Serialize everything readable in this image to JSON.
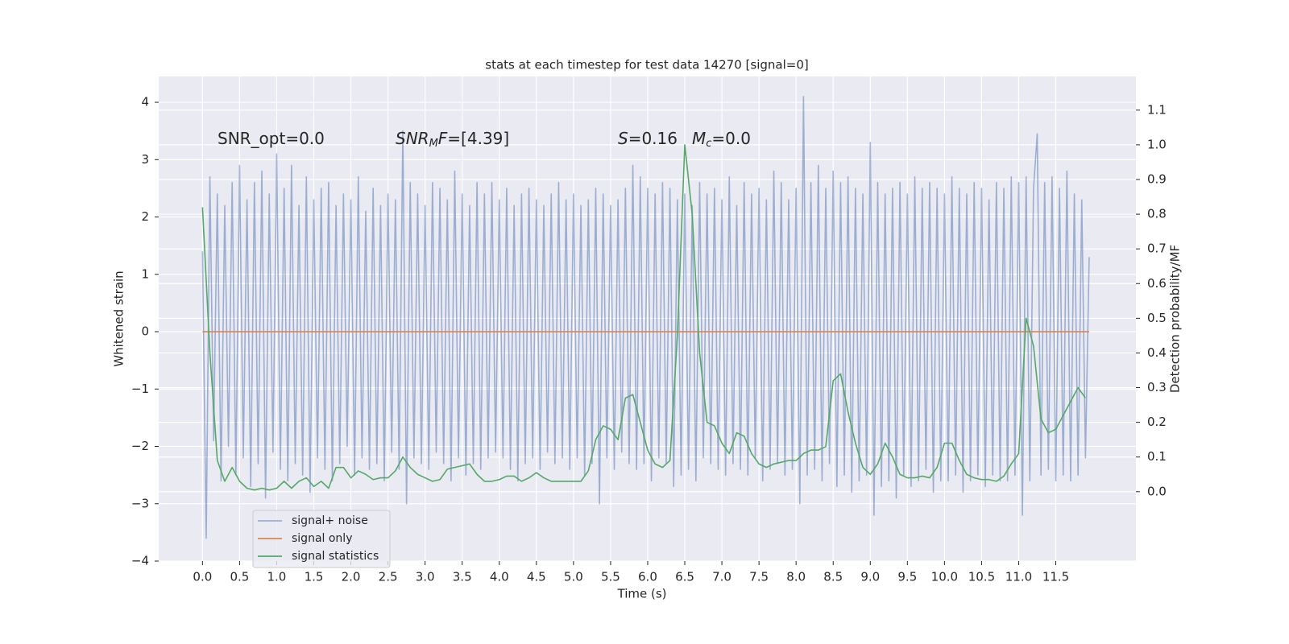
{
  "chart_data": {
    "type": "line",
    "title": "stats at each timestep for test data 14270 [signal=0]",
    "xlabel": "Time (s)",
    "ylabel": "Whitened strain",
    "y2label": "Detection probability/MF",
    "annotations": [
      [
        {
          "text": "SNR_opt=0.0"
        }
      ],
      [
        {
          "text": "SNR",
          "italic": true
        },
        {
          "text": "M",
          "italic": true,
          "sub": true
        },
        {
          "text": "F",
          "italic": true
        },
        {
          "text": "=[4.39]"
        }
      ],
      [
        {
          "text": "S",
          "italic": true
        },
        {
          "text": "=0.16"
        }
      ],
      [
        {
          "text": "M",
          "italic": true
        },
        {
          "text": "c",
          "italic": true,
          "sub": true
        },
        {
          "text": "=0.0"
        }
      ]
    ],
    "xlim": [
      -0.59,
      12.58
    ],
    "ylim": [
      -4.0,
      4.45
    ],
    "y2lim": [
      -0.2,
      1.197
    ],
    "xticks": [
      {
        "value": 0,
        "label": "0.0"
      },
      0.5,
      {
        "value": 1,
        "label": "1.0"
      },
      1.5,
      {
        "value": 2,
        "label": "2.0"
      },
      2.5,
      {
        "value": 3,
        "label": "3.0"
      },
      3.5,
      {
        "value": 4,
        "label": "4.0"
      },
      4.5,
      {
        "value": 5,
        "label": "5.0"
      },
      5.5,
      {
        "value": 6,
        "label": "6.0"
      },
      6.5,
      {
        "value": 7,
        "label": "7.0"
      },
      7.5,
      {
        "value": 8,
        "label": "8.0"
      },
      8.5,
      {
        "value": 9,
        "label": "9.0"
      },
      9.5,
      {
        "value": 10,
        "label": "10.0"
      },
      10.5,
      {
        "value": 11,
        "label": "11.0"
      },
      11.5
    ],
    "yticks": [
      {
        "value": -4,
        "label": "−4"
      },
      {
        "value": -3,
        "label": "−3"
      },
      {
        "value": -2,
        "label": "−2"
      },
      {
        "value": -1,
        "label": "−1"
      },
      0,
      1,
      2,
      3,
      4
    ],
    "y2ticks": [
      {
        "value": 0,
        "label": "0.0"
      },
      0.1,
      0.2,
      0.3,
      0.4,
      0.5,
      0.6,
      0.7,
      0.8,
      0.9,
      {
        "value": 1,
        "label": "1.0"
      },
      1.1
    ],
    "grid": true,
    "legend": "lower left",
    "series": [
      {
        "name": "signal+ noise",
        "color": "#4c72b0",
        "alpha": 0.5,
        "x": [
          0,
          0.05,
          0.1,
          0.15,
          0.2,
          0.25,
          0.3,
          0.35,
          0.4,
          0.45,
          0.5,
          0.55,
          0.6,
          0.65,
          0.7,
          0.75,
          0.8,
          0.85,
          0.9,
          0.95,
          1,
          1.05,
          1.1,
          1.15,
          1.2,
          1.25,
          1.3,
          1.35,
          1.4,
          1.45,
          1.5,
          1.55,
          1.6,
          1.65,
          1.7,
          1.75,
          1.8,
          1.85,
          1.9,
          1.95,
          2,
          2.05,
          2.1,
          2.15,
          2.2,
          2.25,
          2.3,
          2.35,
          2.4,
          2.45,
          2.5,
          2.55,
          2.6,
          2.65,
          2.7,
          2.75,
          2.8,
          2.85,
          2.9,
          2.95,
          3,
          3.05,
          3.1,
          3.15,
          3.2,
          3.25,
          3.3,
          3.35,
          3.4,
          3.45,
          3.5,
          3.55,
          3.6,
          3.65,
          3.7,
          3.75,
          3.8,
          3.85,
          3.9,
          3.95,
          4,
          4.05,
          4.1,
          4.15,
          4.2,
          4.25,
          4.3,
          4.35,
          4.4,
          4.45,
          4.5,
          4.55,
          4.6,
          4.65,
          4.7,
          4.75,
          4.8,
          4.85,
          4.9,
          4.95,
          5,
          5.05,
          5.1,
          5.15,
          5.2,
          5.25,
          5.3,
          5.35,
          5.4,
          5.45,
          5.5,
          5.55,
          5.6,
          5.65,
          5.7,
          5.75,
          5.8,
          5.85,
          5.9,
          5.95,
          6,
          6.05,
          6.1,
          6.15,
          6.2,
          6.25,
          6.3,
          6.35,
          6.4,
          6.45,
          6.5,
          6.55,
          6.6,
          6.65,
          6.7,
          6.75,
          6.8,
          6.85,
          6.9,
          6.95,
          7,
          7.05,
          7.1,
          7.15,
          7.2,
          7.25,
          7.3,
          7.35,
          7.4,
          7.45,
          7.5,
          7.55,
          7.6,
          7.65,
          7.7,
          7.75,
          7.8,
          7.85,
          7.9,
          7.95,
          8,
          8.05,
          8.1,
          8.15,
          8.2,
          8.25,
          8.3,
          8.35,
          8.4,
          8.45,
          8.5,
          8.55,
          8.6,
          8.65,
          8.7,
          8.75,
          8.8,
          8.85,
          8.9,
          8.95,
          9,
          9.05,
          9.1,
          9.15,
          9.2,
          9.25,
          9.3,
          9.35,
          9.4,
          9.45,
          9.5,
          9.55,
          9.6,
          9.65,
          9.7,
          9.75,
          9.8,
          9.85,
          9.9,
          9.95,
          10,
          10.05,
          10.1,
          10.15,
          10.2,
          10.25,
          10.3,
          10.35,
          10.4,
          10.45,
          10.5,
          10.55,
          10.6,
          10.65,
          10.7,
          10.75,
          10.8,
          10.85,
          10.9,
          10.95,
          11,
          11.05,
          11.1,
          11.15,
          11.2,
          11.25,
          11.3,
          11.35,
          11.4,
          11.45,
          11.5,
          11.55,
          11.6,
          11.65,
          11.7,
          11.75,
          11.8,
          11.85,
          11.9,
          11.95
        ],
        "values": [
          1.4,
          -3.6,
          2.7,
          -1.9,
          2.4,
          -2.6,
          2.2,
          -2.0,
          2.6,
          -2.5,
          2.9,
          -2.2,
          2.3,
          -2.7,
          2.6,
          -2.3,
          2.8,
          -2.9,
          2.4,
          -2.1,
          3.1,
          -2.4,
          2.5,
          -2.6,
          2.9,
          -2.3,
          2.2,
          -2.5,
          2.7,
          -2.8,
          2.3,
          -2.2,
          2.5,
          -2.4,
          2.6,
          -2.6,
          2.2,
          -2.3,
          2.4,
          -2.0,
          2.3,
          -2.5,
          2.7,
          -2.2,
          2.1,
          -2.4,
          2.5,
          -2.3,
          2.2,
          -2.6,
          2.4,
          -2.1,
          2.3,
          -2.4,
          3.5,
          -3.0,
          2.6,
          -2.2,
          2.4,
          -2.3,
          2.2,
          -2.4,
          2.6,
          -2.1,
          2.5,
          -2.3,
          2.3,
          -2.6,
          2.8,
          -2.2,
          2.4,
          -2.5,
          2.2,
          -2.3,
          2.6,
          -2.4,
          2.4,
          -2.2,
          2.6,
          -2.1,
          2.3,
          -2.2,
          2.5,
          -2.4,
          2.2,
          -2.6,
          2.4,
          -2.3,
          2.5,
          -2.2,
          2.3,
          -2.4,
          2.2,
          -2.1,
          2.4,
          -2.3,
          2.6,
          -2.2,
          2.3,
          -2.4,
          2.4,
          -2.2,
          2.2,
          -2.5,
          2.3,
          -2.3,
          2.5,
          -3.0,
          2.4,
          -2.2,
          2.2,
          -2.4,
          2.3,
          -2.1,
          2.5,
          -2.3,
          2.9,
          -2.4,
          2.7,
          -2.3,
          2.5,
          -2.6,
          2.4,
          -2.2,
          2.6,
          -2.3,
          2.5,
          -2.7,
          2.3,
          -2.5,
          2.4,
          -2.4,
          2.2,
          -2.6,
          2.6,
          -2.2,
          2.4,
          -2.3,
          2.5,
          -2.4,
          2.3,
          -2.5,
          2.7,
          -2.3,
          2.2,
          -2.4,
          2.6,
          -2.5,
          2.4,
          -2.2,
          2.5,
          -2.6,
          2.3,
          -2.4,
          2.8,
          -2.3,
          2.6,
          -2.5,
          2.3,
          -2.4,
          2.5,
          -3.0,
          4.1,
          -2.5,
          2.6,
          -2.4,
          2.9,
          -2.6,
          2.5,
          -2.3,
          2.8,
          -2.7,
          2.6,
          -2.5,
          2.7,
          -2.8,
          2.5,
          -2.6,
          2.4,
          -2.5,
          3.3,
          -3.2,
          2.6,
          -2.7,
          2.4,
          -2.6,
          2.5,
          -2.9,
          2.6,
          -2.5,
          2.4,
          -2.7,
          2.7,
          -2.6,
          2.5,
          -2.4,
          2.6,
          -2.8,
          2.5,
          -2.6,
          2.4,
          -2.6,
          2.7,
          -2.5,
          2.5,
          -2.8,
          2.4,
          -2.6,
          2.6,
          -2.5,
          2.5,
          -2.7,
          2.3,
          -2.5,
          2.6,
          -2.6,
          2.5,
          -2.6,
          2.7,
          -2.5,
          2.6,
          -3.2,
          2.7,
          -2.6,
          2.5,
          3.45,
          -2.5,
          2.6,
          -2.4,
          2.7,
          -2.6,
          2.5,
          -2.5,
          2.8,
          -2.6,
          2.4,
          -2.5,
          2.3,
          -2.2,
          1.3
        ]
      },
      {
        "name": "signal only",
        "color": "#dd8452",
        "x": [
          0,
          11.95
        ],
        "values": [
          0,
          0
        ]
      },
      {
        "name": "signal statistics",
        "color": "#55a868",
        "axis": "y2",
        "x": [
          0,
          0.1,
          0.2,
          0.3,
          0.4,
          0.5,
          0.6,
          0.7,
          0.8,
          0.9,
          1,
          1.1,
          1.2,
          1.3,
          1.4,
          1.5,
          1.6,
          1.7,
          1.8,
          1.9,
          2,
          2.1,
          2.2,
          2.3,
          2.4,
          2.5,
          2.6,
          2.7,
          2.8,
          2.9,
          3,
          3.1,
          3.2,
          3.3,
          3.4,
          3.5,
          3.6,
          3.7,
          3.8,
          3.9,
          4,
          4.1,
          4.2,
          4.3,
          4.4,
          4.5,
          4.6,
          4.7,
          4.8,
          4.9,
          5,
          5.1,
          5.2,
          5.3,
          5.4,
          5.5,
          5.6,
          5.7,
          5.8,
          5.9,
          6,
          6.1,
          6.2,
          6.3,
          6.4,
          6.5,
          6.6,
          6.7,
          6.8,
          6.9,
          7,
          7.1,
          7.2,
          7.3,
          7.4,
          7.5,
          7.6,
          7.7,
          7.8,
          7.9,
          8,
          8.1,
          8.2,
          8.3,
          8.4,
          8.5,
          8.6,
          8.7,
          8.8,
          8.9,
          9,
          9.1,
          9.2,
          9.3,
          9.4,
          9.5,
          9.6,
          9.7,
          9.8,
          9.9,
          10,
          10.1,
          10.2,
          10.3,
          10.4,
          10.5,
          10.6,
          10.7,
          10.8,
          10.9,
          11,
          11.1,
          11.2,
          11.3,
          11.4,
          11.5,
          11.6,
          11.7,
          11.8,
          11.9
        ],
        "values": [
          0.82,
          0.4,
          0.09,
          0.03,
          0.07,
          0.03,
          0.01,
          0.005,
          0.01,
          0.005,
          0.01,
          0.03,
          0.01,
          0.03,
          0.04,
          0.015,
          0.03,
          0.01,
          0.07,
          0.07,
          0.04,
          0.06,
          0.05,
          0.035,
          0.04,
          0.04,
          0.06,
          0.1,
          0.07,
          0.05,
          0.04,
          0.03,
          0.035,
          0.065,
          0.07,
          0.075,
          0.08,
          0.05,
          0.03,
          0.03,
          0.035,
          0.045,
          0.045,
          0.03,
          0.04,
          0.055,
          0.04,
          0.03,
          0.03,
          0.03,
          0.03,
          0.03,
          0.06,
          0.15,
          0.19,
          0.18,
          0.15,
          0.27,
          0.28,
          0.2,
          0.12,
          0.08,
          0.07,
          0.09,
          0.45,
          1.0,
          0.8,
          0.4,
          0.2,
          0.19,
          0.14,
          0.11,
          0.17,
          0.16,
          0.11,
          0.08,
          0.07,
          0.08,
          0.085,
          0.09,
          0.09,
          0.11,
          0.12,
          0.12,
          0.13,
          0.32,
          0.34,
          0.23,
          0.14,
          0.07,
          0.05,
          0.08,
          0.14,
          0.1,
          0.05,
          0.04,
          0.04,
          0.045,
          0.04,
          0.07,
          0.14,
          0.14,
          0.09,
          0.05,
          0.04,
          0.035,
          0.035,
          0.03,
          0.045,
          0.08,
          0.11,
          0.5,
          0.42,
          0.21,
          0.17,
          0.18,
          0.22,
          0.26,
          0.3,
          0.27
        ]
      }
    ]
  }
}
